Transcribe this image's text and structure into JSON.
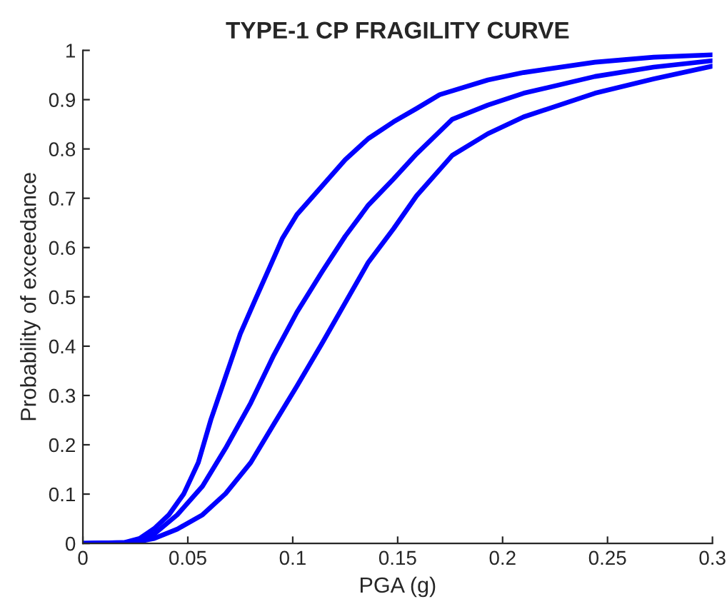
{
  "chart_data": {
    "type": "line",
    "title": "TYPE-1 CP FRAGILITY CURVE",
    "xlabel": "PGA (g)",
    "ylabel": "Probability of exceedance",
    "xlim": [
      0,
      0.3
    ],
    "ylim": [
      0,
      1
    ],
    "xticks": [
      0,
      0.05,
      0.1,
      0.15,
      0.2,
      0.25,
      0.3
    ],
    "yticks": [
      0,
      0.1,
      0.2,
      0.3,
      0.4,
      0.5,
      0.6,
      0.7,
      0.8,
      0.9,
      1
    ],
    "grid": false,
    "line_style": "solid",
    "marker": "none",
    "series": [
      {
        "color": "#0000ff",
        "x": [
          0,
          0.02,
          0.027,
          0.034,
          0.041,
          0.048,
          0.055,
          0.061,
          0.068,
          0.075,
          0.082,
          0.089,
          0.095,
          0.102,
          0.114,
          0.125,
          0.136,
          0.148,
          0.159,
          0.17,
          0.193,
          0.21,
          0.244,
          0.272,
          0.3
        ],
        "values": [
          0,
          0.002,
          0.01,
          0.03,
          0.058,
          0.1,
          0.164,
          0.251,
          0.338,
          0.425,
          0.493,
          0.56,
          0.618,
          0.667,
          0.725,
          0.778,
          0.821,
          0.855,
          0.882,
          0.91,
          0.94,
          0.955,
          0.976,
          0.986,
          0.991
        ]
      },
      {
        "color": "#0000ff",
        "x": [
          0,
          0.023,
          0.034,
          0.045,
          0.057,
          0.068,
          0.08,
          0.091,
          0.102,
          0.114,
          0.125,
          0.136,
          0.148,
          0.159,
          0.176,
          0.193,
          0.21,
          0.244,
          0.272,
          0.3
        ],
        "values": [
          0,
          0.002,
          0.019,
          0.058,
          0.116,
          0.193,
          0.285,
          0.382,
          0.469,
          0.551,
          0.623,
          0.686,
          0.739,
          0.79,
          0.86,
          0.889,
          0.913,
          0.947,
          0.966,
          0.979
        ]
      },
      {
        "color": "#0000ff",
        "x": [
          0,
          0.023,
          0.034,
          0.045,
          0.057,
          0.068,
          0.08,
          0.091,
          0.102,
          0.114,
          0.125,
          0.136,
          0.148,
          0.159,
          0.176,
          0.193,
          0.21,
          0.244,
          0.272,
          0.3
        ],
        "values": [
          0,
          0.001,
          0.01,
          0.029,
          0.058,
          0.101,
          0.164,
          0.242,
          0.319,
          0.406,
          0.488,
          0.57,
          0.638,
          0.705,
          0.787,
          0.831,
          0.865,
          0.913,
          0.942,
          0.968
        ]
      }
    ]
  }
}
